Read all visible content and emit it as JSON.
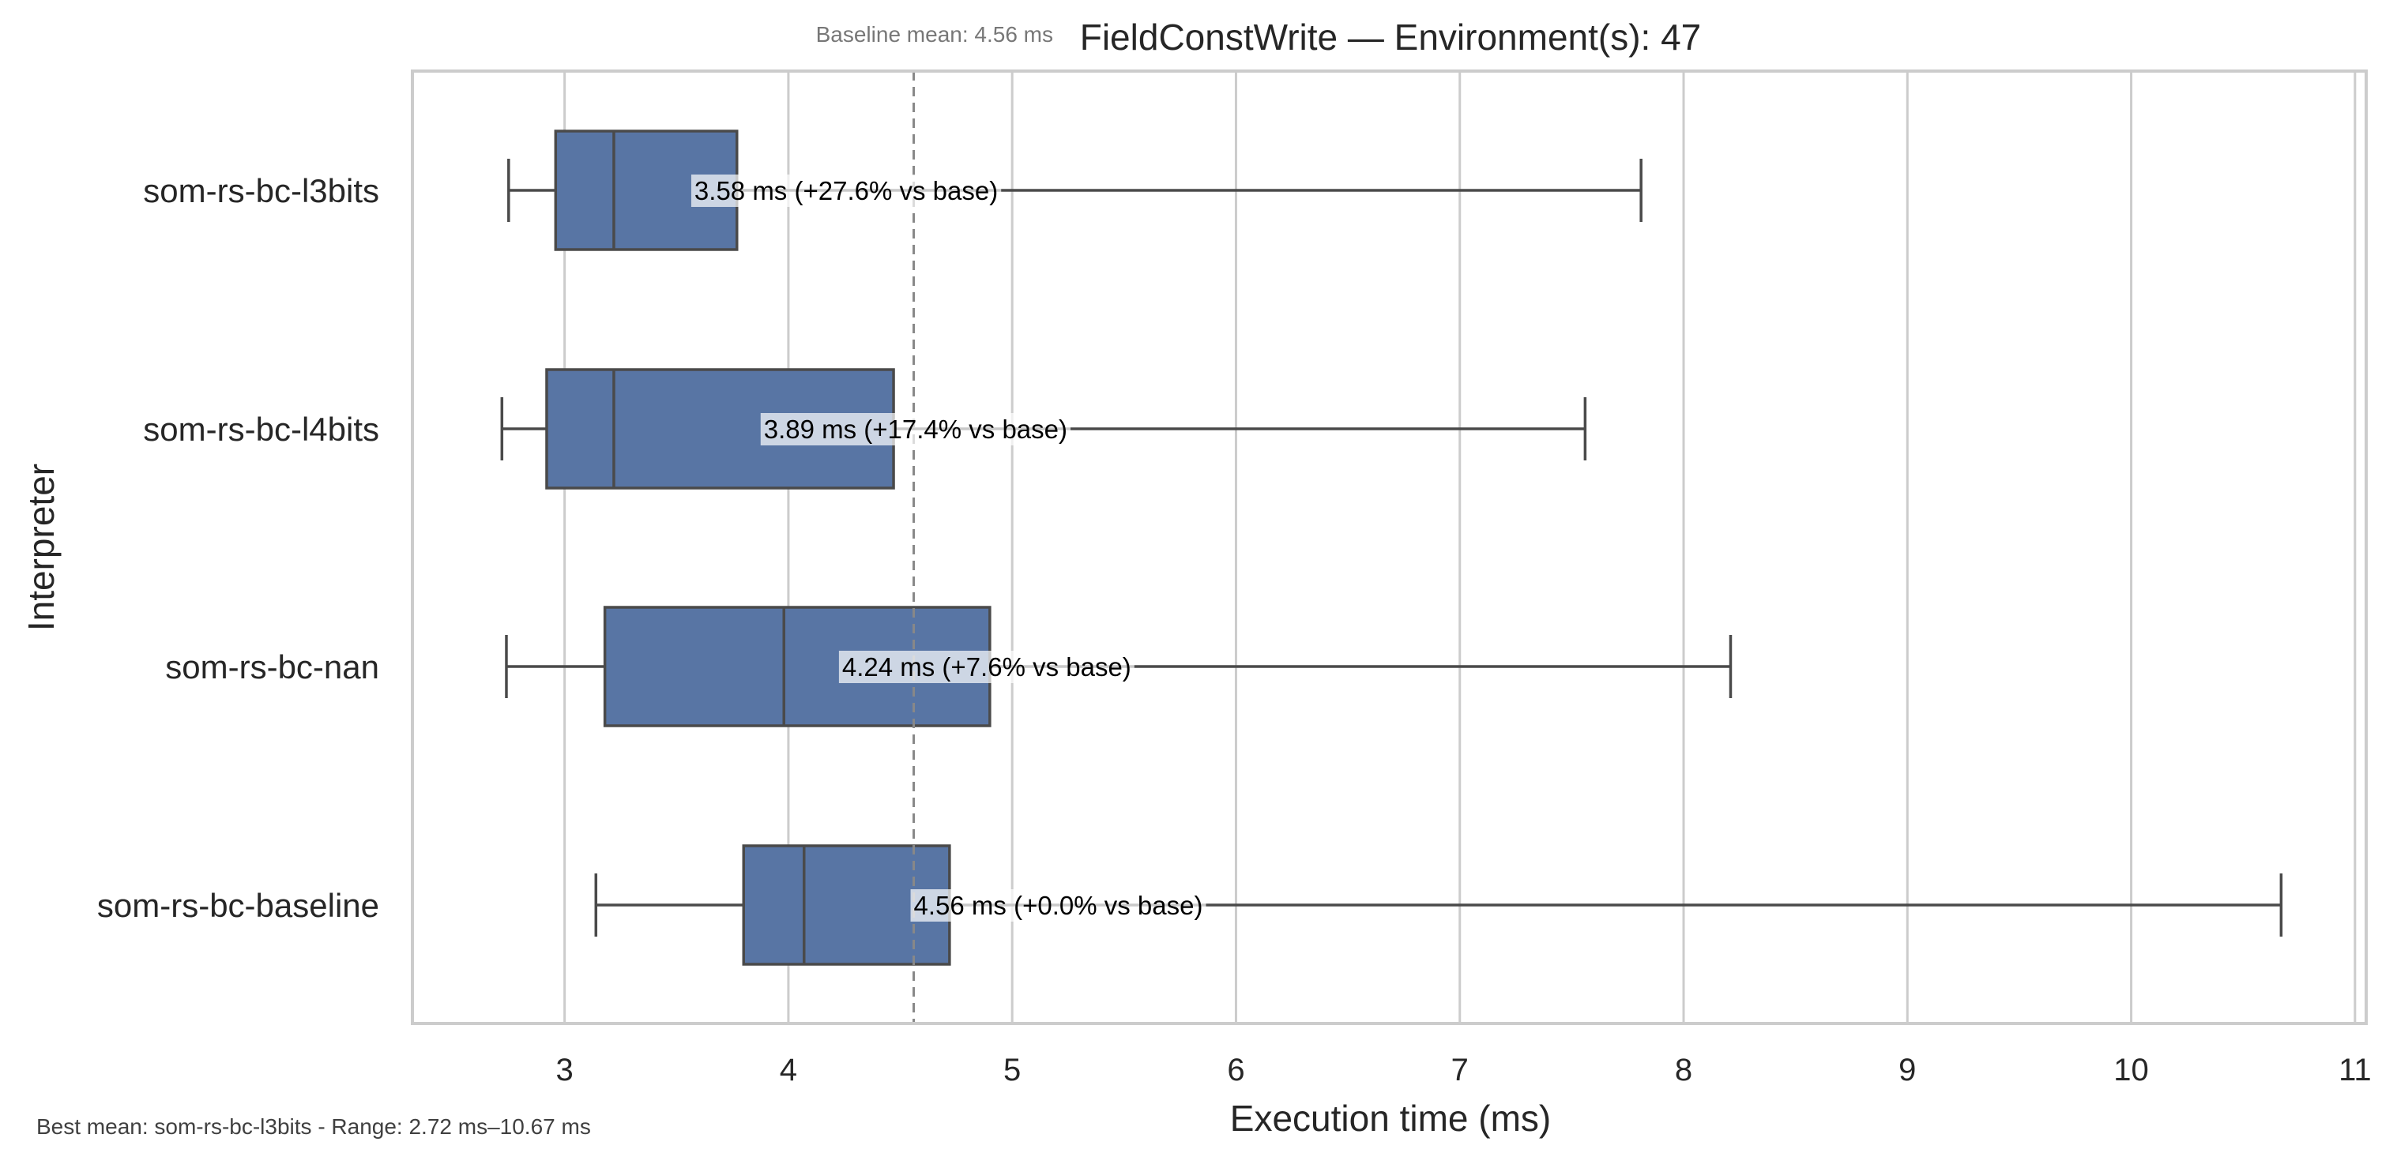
{
  "chart_data": {
    "type": "box",
    "orientation": "horizontal",
    "title": "FieldConstWrite — Environment(s): 47",
    "xlabel": "Execution time (ms)",
    "ylabel": "Interpreter",
    "xlim": [
      2.32,
      11.05
    ],
    "xticks": [
      3,
      4,
      5,
      6,
      7,
      8,
      9,
      10,
      11
    ],
    "grid": "vertical",
    "box_color": "#5875a4",
    "line_color": "#4a4a4a",
    "baseline": {
      "value": 4.56,
      "label": "Baseline mean: 4.56 ms"
    },
    "footer": "Best mean: som-rs-bc-l3bits - Range: 2.72 ms–10.67 ms",
    "series": [
      {
        "name": "som-rs-bc-l3bits",
        "whisker_low": 2.75,
        "q1": 2.96,
        "median": 3.22,
        "q3": 3.77,
        "whisker_high": 7.81,
        "mean": 3.58,
        "annotation": "3.58 ms  (+27.6% vs base)"
      },
      {
        "name": "som-rs-bc-l4bits",
        "whisker_low": 2.72,
        "q1": 2.92,
        "median": 3.22,
        "q3": 4.47,
        "whisker_high": 7.56,
        "mean": 3.89,
        "annotation": "3.89 ms  (+17.4% vs base)"
      },
      {
        "name": "som-rs-bc-nan",
        "whisker_low": 2.74,
        "q1": 3.18,
        "median": 3.98,
        "q3": 4.9,
        "whisker_high": 8.21,
        "mean": 4.24,
        "annotation": "4.24 ms  (+7.6% vs base)"
      },
      {
        "name": "som-rs-bc-baseline",
        "whisker_low": 3.14,
        "q1": 3.8,
        "median": 4.07,
        "q3": 4.72,
        "whisker_high": 10.67,
        "mean": 4.56,
        "annotation": "4.56 ms  (+0.0% vs base)"
      }
    ]
  }
}
